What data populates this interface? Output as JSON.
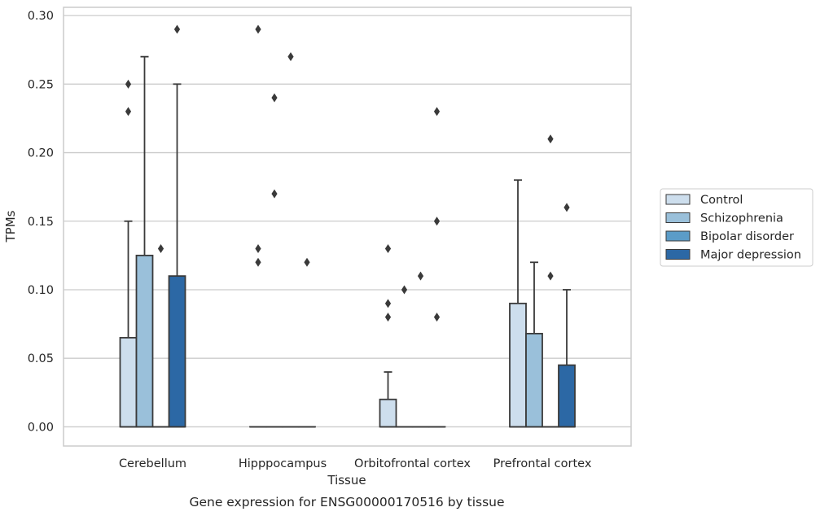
{
  "chart_data": {
    "type": "boxplot",
    "caption": "Gene expression for ENSG00000170516 by tissue",
    "xlabel": "Tissue",
    "ylabel": "TPMs",
    "ylim": [
      -0.014,
      0.306
    ],
    "yticks": [
      0.0,
      0.05,
      0.1,
      0.15,
      0.2,
      0.25,
      0.3
    ],
    "ytick_labels": [
      "0.00",
      "0.05",
      "0.10",
      "0.15",
      "0.20",
      "0.25",
      "0.30"
    ],
    "grid": "horizontal",
    "legend_position": "right",
    "categories": [
      "Cerebellum",
      "Hipppocampus",
      "Orbitofrontal cortex",
      "Prefrontal cortex"
    ],
    "series": [
      {
        "name": "Control",
        "color": "#cddeed",
        "boxes": [
          {
            "q1": 0.0,
            "median": 0.0,
            "q3": 0.065,
            "whisker_low": 0.0,
            "whisker_high": 0.15,
            "outliers": [
              0.23,
              0.25
            ]
          },
          {
            "q1": 0.0,
            "median": 0.0,
            "q3": 0.0,
            "whisker_low": 0.0,
            "whisker_high": 0.0,
            "outliers": [
              0.12,
              0.13,
              0.29
            ]
          },
          {
            "q1": 0.0,
            "median": 0.0,
            "q3": 0.02,
            "whisker_low": 0.0,
            "whisker_high": 0.04,
            "outliers": [
              0.08,
              0.09,
              0.13
            ]
          },
          {
            "q1": 0.0,
            "median": 0.0,
            "q3": 0.09,
            "whisker_low": 0.0,
            "whisker_high": 0.18,
            "outliers": []
          }
        ]
      },
      {
        "name": "Schizophrenia",
        "color": "#9ac0da",
        "boxes": [
          {
            "q1": 0.0,
            "median": 0.0,
            "q3": 0.125,
            "whisker_low": 0.0,
            "whisker_high": 0.27,
            "outliers": []
          },
          {
            "q1": 0.0,
            "median": 0.0,
            "q3": 0.0,
            "whisker_low": 0.0,
            "whisker_high": 0.0,
            "outliers": [
              0.17,
              0.24
            ]
          },
          {
            "q1": 0.0,
            "median": 0.0,
            "q3": 0.0,
            "whisker_low": 0.0,
            "whisker_high": 0.0,
            "outliers": [
              0.1
            ]
          },
          {
            "q1": 0.0,
            "median": 0.0,
            "q3": 0.068,
            "whisker_low": 0.0,
            "whisker_high": 0.12,
            "outliers": []
          }
        ]
      },
      {
        "name": "Bipolar disorder",
        "color": "#5b9cc8",
        "boxes": [
          {
            "q1": 0.0,
            "median": 0.0,
            "q3": 0.0,
            "whisker_low": 0.0,
            "whisker_high": 0.0,
            "outliers": [
              0.13
            ]
          },
          {
            "q1": 0.0,
            "median": 0.0,
            "q3": 0.0,
            "whisker_low": 0.0,
            "whisker_high": 0.0,
            "outliers": [
              0.27
            ]
          },
          {
            "q1": 0.0,
            "median": 0.0,
            "q3": 0.0,
            "whisker_low": 0.0,
            "whisker_high": 0.0,
            "outliers": [
              0.11
            ]
          },
          {
            "q1": 0.0,
            "median": 0.0,
            "q3": 0.0,
            "whisker_low": 0.0,
            "whisker_high": 0.0,
            "outliers": [
              0.11,
              0.21
            ]
          }
        ]
      },
      {
        "name": "Major depression",
        "color": "#2c68a5",
        "boxes": [
          {
            "q1": 0.0,
            "median": 0.0,
            "q3": 0.11,
            "whisker_low": 0.0,
            "whisker_high": 0.25,
            "outliers": [
              0.29
            ]
          },
          {
            "q1": 0.0,
            "median": 0.0,
            "q3": 0.0,
            "whisker_low": 0.0,
            "whisker_high": 0.0,
            "outliers": [
              0.12
            ]
          },
          {
            "q1": 0.0,
            "median": 0.0,
            "q3": 0.0,
            "whisker_low": 0.0,
            "whisker_high": 0.0,
            "outliers": [
              0.08,
              0.15,
              0.23
            ]
          },
          {
            "q1": 0.0,
            "median": 0.0,
            "q3": 0.045,
            "whisker_low": 0.0,
            "whisker_high": 0.1,
            "outliers": [
              0.16
            ]
          }
        ]
      }
    ]
  }
}
